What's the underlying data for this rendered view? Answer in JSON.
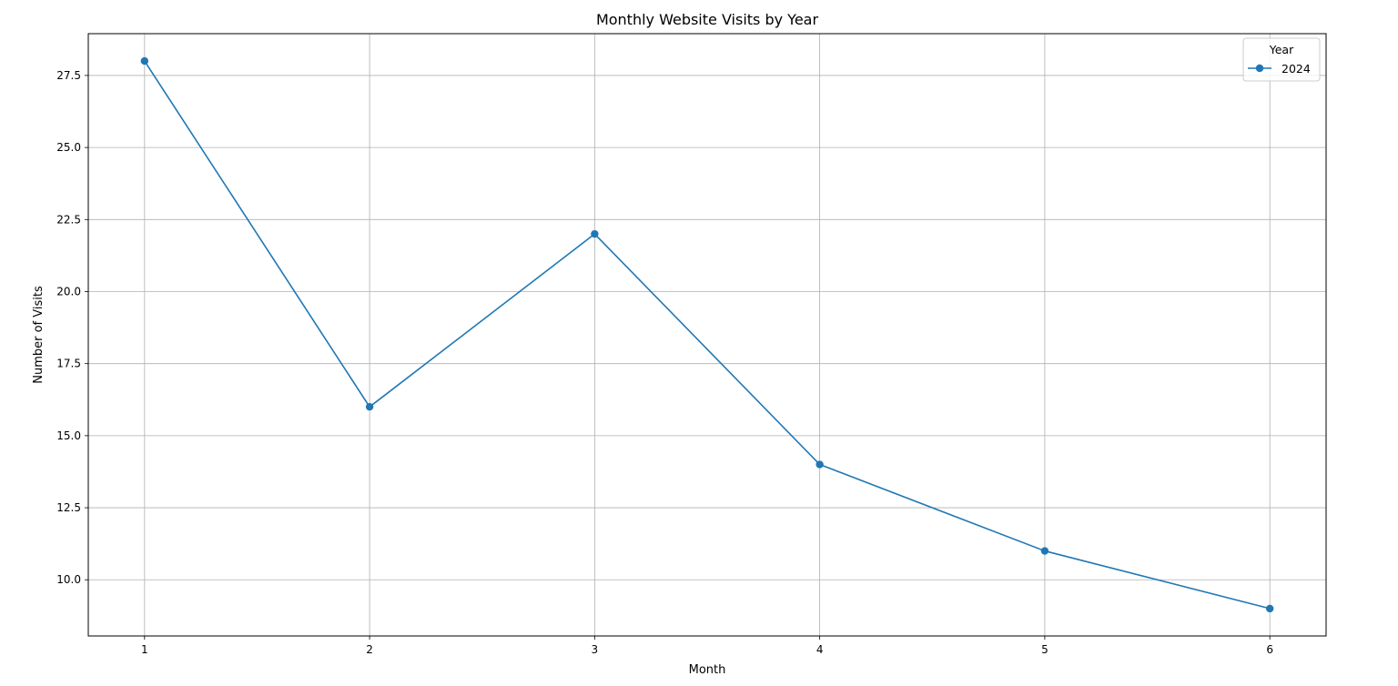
{
  "chart_data": {
    "type": "line",
    "title": "Monthly Website Visits by Year",
    "xlabel": "Month",
    "ylabel": "Number of Visits",
    "x": [
      1,
      2,
      3,
      4,
      5,
      6
    ],
    "xticks": [
      "1",
      "2",
      "3",
      "4",
      "5",
      "6"
    ],
    "yticks": [
      "10.0",
      "12.5",
      "15.0",
      "17.5",
      "20.0",
      "22.5",
      "25.0",
      "27.5"
    ],
    "ylim": [
      8.05,
      28.95
    ],
    "xlim": [
      0.75,
      6.25
    ],
    "grid": true,
    "legend": {
      "title": "Year",
      "placement": "top-right"
    },
    "series": [
      {
        "name": "2024",
        "color": "#1f77b4",
        "marker": "circle",
        "values": [
          28,
          16,
          22,
          14,
          11,
          9
        ]
      }
    ]
  }
}
